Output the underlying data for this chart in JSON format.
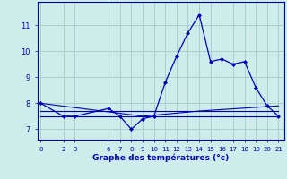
{
  "xlabel": "Graphe des températures (°c)",
  "background_color": "#ceecea",
  "grid_color": "#aacfcc",
  "line_color": "#0000bb",
  "x_ticks": [
    0,
    2,
    3,
    6,
    7,
    8,
    9,
    10,
    11,
    12,
    13,
    14,
    15,
    16,
    17,
    18,
    19,
    20,
    21
  ],
  "series": [
    {
      "x": [
        0,
        2,
        3,
        6,
        7,
        8,
        9,
        10,
        11,
        12,
        13,
        14,
        15,
        16,
        17,
        18,
        19,
        20,
        21
      ],
      "y": [
        8.0,
        7.5,
        7.5,
        7.8,
        7.5,
        7.0,
        7.4,
        7.5,
        8.8,
        9.8,
        10.7,
        11.4,
        9.6,
        9.7,
        9.5,
        9.6,
        8.6,
        7.9,
        7.5
      ],
      "marker": true
    },
    {
      "x": [
        0,
        21
      ],
      "y": [
        7.5,
        7.5
      ],
      "marker": false
    },
    {
      "x": [
        0,
        21
      ],
      "y": [
        7.7,
        7.7
      ],
      "marker": false
    },
    {
      "x": [
        0,
        9,
        14,
        21
      ],
      "y": [
        8.0,
        7.5,
        7.7,
        7.9
      ],
      "marker": false
    }
  ],
  "ylim": [
    6.6,
    11.9
  ],
  "y_ticks": [
    7,
    8,
    9,
    10,
    11
  ],
  "xlim": [
    -0.3,
    21.5
  ]
}
